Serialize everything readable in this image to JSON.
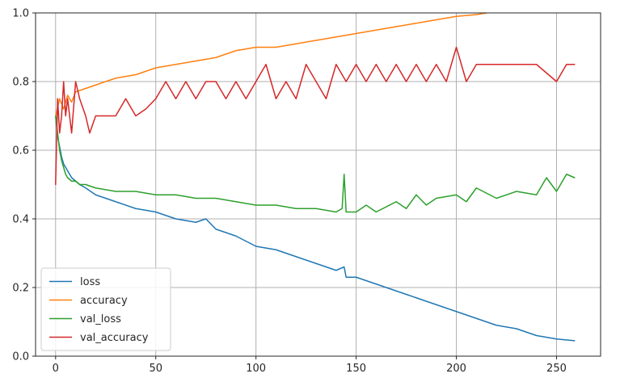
{
  "chart_data": {
    "type": "line",
    "title": "",
    "xlabel": "",
    "ylabel": "",
    "xlim": [
      -10,
      272
    ],
    "ylim": [
      0.0,
      1.0
    ],
    "grid": true,
    "legend_position": "lower-left",
    "x_ticks": [
      0,
      50,
      100,
      150,
      200,
      250
    ],
    "x_tick_labels": [
      "0",
      "50",
      "100",
      "150",
      "200",
      "250"
    ],
    "y_ticks": [
      0.0,
      0.2,
      0.4,
      0.6,
      0.8,
      1.0
    ],
    "y_tick_labels": [
      "0.0",
      "0.2",
      "0.4",
      "0.6",
      "0.8",
      "1.0"
    ],
    "series": [
      {
        "name": "loss",
        "color": "#1f77b4",
        "x": [
          0,
          1,
          2,
          3,
          4,
          5,
          6,
          8,
          10,
          12,
          15,
          20,
          25,
          30,
          40,
          50,
          60,
          70,
          75,
          80,
          90,
          100,
          110,
          120,
          130,
          140,
          144,
          145,
          150,
          160,
          170,
          180,
          190,
          200,
          210,
          220,
          230,
          240,
          250,
          259
        ],
        "values": [
          0.7,
          0.64,
          0.61,
          0.58,
          0.56,
          0.55,
          0.54,
          0.52,
          0.51,
          0.5,
          0.49,
          0.47,
          0.46,
          0.45,
          0.43,
          0.42,
          0.4,
          0.39,
          0.4,
          0.37,
          0.35,
          0.32,
          0.31,
          0.29,
          0.27,
          0.25,
          0.26,
          0.23,
          0.23,
          0.21,
          0.19,
          0.17,
          0.15,
          0.13,
          0.11,
          0.09,
          0.08,
          0.06,
          0.05,
          0.045
        ]
      },
      {
        "name": "accuracy",
        "color": "#ff7f0e",
        "x": [
          0,
          2,
          4,
          6,
          8,
          10,
          15,
          20,
          30,
          40,
          50,
          60,
          70,
          80,
          90,
          100,
          110,
          120,
          130,
          140,
          150,
          160,
          170,
          180,
          190,
          200,
          210,
          215
        ],
        "values": [
          0.7,
          0.75,
          0.72,
          0.76,
          0.74,
          0.77,
          0.78,
          0.79,
          0.81,
          0.82,
          0.84,
          0.85,
          0.86,
          0.87,
          0.89,
          0.9,
          0.9,
          0.91,
          0.92,
          0.93,
          0.94,
          0.95,
          0.96,
          0.97,
          0.98,
          0.99,
          0.995,
          1.0
        ]
      },
      {
        "name": "val_loss",
        "color": "#2ca02c",
        "x": [
          0,
          1,
          2,
          3,
          4,
          5,
          6,
          8,
          10,
          12,
          15,
          20,
          30,
          40,
          50,
          60,
          70,
          80,
          90,
          100,
          110,
          120,
          130,
          140,
          143,
          144,
          145,
          150,
          155,
          160,
          170,
          175,
          180,
          185,
          190,
          200,
          205,
          210,
          220,
          230,
          240,
          245,
          250,
          255,
          259
        ],
        "values": [
          0.7,
          0.65,
          0.6,
          0.57,
          0.55,
          0.53,
          0.52,
          0.51,
          0.51,
          0.5,
          0.5,
          0.49,
          0.48,
          0.48,
          0.47,
          0.47,
          0.46,
          0.46,
          0.45,
          0.44,
          0.44,
          0.43,
          0.43,
          0.42,
          0.43,
          0.53,
          0.42,
          0.42,
          0.44,
          0.42,
          0.45,
          0.43,
          0.47,
          0.44,
          0.46,
          0.47,
          0.45,
          0.49,
          0.46,
          0.48,
          0.47,
          0.52,
          0.48,
          0.53,
          0.52
        ]
      },
      {
        "name": "val_accuracy",
        "color": "#d62728",
        "x": [
          0,
          1,
          2,
          3,
          4,
          5,
          6,
          8,
          10,
          12,
          15,
          17,
          20,
          25,
          30,
          35,
          40,
          45,
          50,
          55,
          60,
          65,
          70,
          75,
          80,
          85,
          90,
          95,
          100,
          105,
          110,
          115,
          120,
          125,
          130,
          135,
          140,
          145,
          150,
          155,
          160,
          165,
          170,
          175,
          180,
          185,
          190,
          195,
          200,
          205,
          210,
          215,
          220,
          225,
          230,
          240,
          250,
          255,
          259
        ],
        "values": [
          0.5,
          0.75,
          0.65,
          0.7,
          0.8,
          0.7,
          0.75,
          0.65,
          0.8,
          0.75,
          0.7,
          0.65,
          0.7,
          0.7,
          0.7,
          0.75,
          0.7,
          0.72,
          0.75,
          0.8,
          0.75,
          0.8,
          0.75,
          0.8,
          0.8,
          0.75,
          0.8,
          0.75,
          0.8,
          0.85,
          0.75,
          0.8,
          0.75,
          0.85,
          0.8,
          0.75,
          0.85,
          0.8,
          0.85,
          0.8,
          0.85,
          0.8,
          0.85,
          0.8,
          0.85,
          0.8,
          0.85,
          0.8,
          0.9,
          0.8,
          0.85,
          0.85,
          0.85,
          0.85,
          0.85,
          0.85,
          0.8,
          0.85,
          0.85
        ]
      }
    ]
  }
}
